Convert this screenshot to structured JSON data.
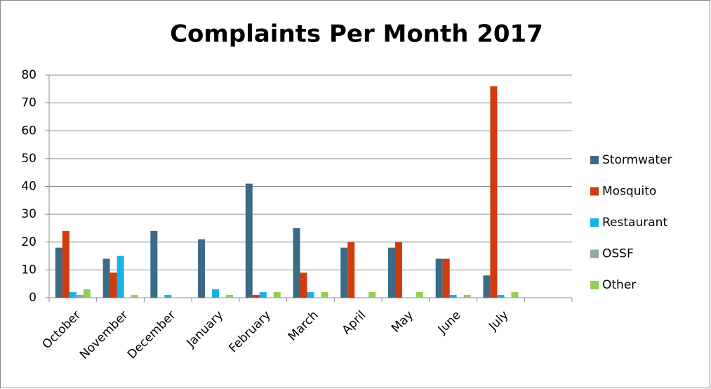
{
  "chart_data": {
    "type": "bar",
    "title": "Complaints Per Month 2017",
    "categories": [
      "October",
      "November",
      "December",
      "January",
      "February",
      "March",
      "April",
      "May",
      "June",
      "July",
      null
    ],
    "series": [
      {
        "name": "Stormwater",
        "color": "#3c6b87",
        "values": [
          18,
          14,
          24,
          21,
          41,
          25,
          18,
          18,
          14,
          8,
          null
        ]
      },
      {
        "name": "Mosquito",
        "color": "#d23b0b",
        "values": [
          24,
          9,
          0,
          0,
          1,
          9,
          20,
          20,
          14,
          76,
          null
        ]
      },
      {
        "name": "Restaurant",
        "color": "#17b1e8",
        "values": [
          2,
          15,
          1,
          3,
          2,
          2,
          0,
          0,
          1,
          1,
          null
        ]
      },
      {
        "name": "OSSF",
        "color": "#8ea89a",
        "values": [
          1,
          0,
          0,
          0,
          0,
          0,
          0,
          0,
          0,
          0,
          null
        ]
      },
      {
        "name": "Other",
        "color": "#8fd14f",
        "values": [
          3,
          1,
          0,
          1,
          2,
          2,
          2,
          2,
          1,
          2,
          null
        ]
      }
    ],
    "ylim": [
      0,
      80
    ],
    "yticks": [
      0,
      10,
      20,
      30,
      40,
      50,
      60,
      70,
      80
    ],
    "grid": true,
    "legend": "right"
  }
}
